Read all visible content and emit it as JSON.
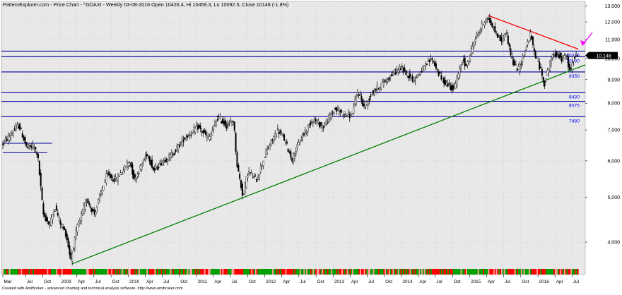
{
  "header": {
    "title": "PatternExplorer.com - Price Chart - ^GDAXI - Weekly 03-08-2016 Open 10426.4, Hi 10459.3, Lo 10092.5, Close 10148 (-1.8%)"
  },
  "footer": {
    "credit": "Created with AmiBroker - advanced charting and technical analysis software. http://www.amibroker.com"
  },
  "chart_data": {
    "type": "candlestick",
    "title": "PatternExplorer.com - Price Chart - ^GDAXI - Weekly 03-08-2016 Open 10426.4, Hi 10459.3, Lo 10092.5, Close 10148 (-1.8%)",
    "y_scale": "log",
    "ylim": [
      3500,
      13200
    ],
    "y_ticks": [
      {
        "value": 4000,
        "label": "4,000"
      },
      {
        "value": 5000,
        "label": "5,000"
      },
      {
        "value": 6000,
        "label": "6,000"
      },
      {
        "value": 7000,
        "label": "7,000"
      },
      {
        "value": 8000,
        "label": "8,000"
      },
      {
        "value": 9000,
        "label": "9,000"
      },
      {
        "value": 10000,
        "label": "10,000"
      },
      {
        "value": 11000,
        "label": "11,000"
      },
      {
        "value": 12000,
        "label": "12,000"
      },
      {
        "value": 13000,
        "label": "13,000"
      }
    ],
    "x_ticks": [
      {
        "label": "Mar",
        "date": "2008-03-01"
      },
      {
        "label": "Jul",
        "date": "2008-07-01"
      },
      {
        "label": "Oct",
        "date": "2008-10-01"
      },
      {
        "label": "2009",
        "date": "2009-01-01"
      },
      {
        "label": "Apr",
        "date": "2009-04-01"
      },
      {
        "label": "Jul",
        "date": "2009-07-01"
      },
      {
        "label": "Oct",
        "date": "2009-10-01"
      },
      {
        "label": "2010",
        "date": "2010-01-01"
      },
      {
        "label": "Apr",
        "date": "2010-04-01"
      },
      {
        "label": "Jul",
        "date": "2010-07-01"
      },
      {
        "label": "Oct",
        "date": "2010-10-01"
      },
      {
        "label": "2011",
        "date": "2011-01-01"
      },
      {
        "label": "Apr",
        "date": "2011-04-01"
      },
      {
        "label": "Jul",
        "date": "2011-07-01"
      },
      {
        "label": "Oct",
        "date": "2011-10-01"
      },
      {
        "label": "2012",
        "date": "2012-01-01"
      },
      {
        "label": "Apr",
        "date": "2012-04-01"
      },
      {
        "label": "Jul",
        "date": "2012-07-01"
      },
      {
        "label": "Oct",
        "date": "2012-10-01"
      },
      {
        "label": "2013",
        "date": "2013-01-01"
      },
      {
        "label": "Apr",
        "date": "2013-04-01"
      },
      {
        "label": "Jul",
        "date": "2013-07-01"
      },
      {
        "label": "Oct",
        "date": "2013-10-01"
      },
      {
        "label": "2014",
        "date": "2014-01-01"
      },
      {
        "label": "Apr",
        "date": "2014-04-01"
      },
      {
        "label": "Jul",
        "date": "2014-07-01"
      },
      {
        "label": "Oct",
        "date": "2014-10-01"
      },
      {
        "label": "2015",
        "date": "2015-01-01"
      },
      {
        "label": "Apr",
        "date": "2015-04-01"
      },
      {
        "label": "Jul",
        "date": "2015-07-01"
      },
      {
        "label": "Oct",
        "date": "2015-10-01"
      },
      {
        "label": "2016",
        "date": "2016-01-01"
      },
      {
        "label": "Apr",
        "date": "2016-04-01"
      },
      {
        "label": "Jul",
        "date": "2016-07-01"
      }
    ],
    "date_range": [
      "2008-03-01",
      "2016-08-03"
    ],
    "last_close": {
      "value": 10148,
      "label": "10,148"
    },
    "horizontal_levels": [
      {
        "value": 10375,
        "label": "10375"
      },
      {
        "value": 10090,
        "label": "10090"
      },
      {
        "value": 9350,
        "label": "9350"
      },
      {
        "value": 8430,
        "label": "8430"
      },
      {
        "value": 8075,
        "label": "8075"
      },
      {
        "value": 7480,
        "label": "7480"
      }
    ],
    "short_levels": [
      {
        "value": 6550,
        "date_start": "2008-03-01",
        "date_end": "2008-11-20"
      },
      {
        "value": 6250,
        "date_start": "2008-03-01",
        "date_end": "2008-10-25"
      }
    ],
    "trendlines": [
      {
        "name": "support",
        "color": "#008000",
        "points": [
          {
            "date": "2009-03-06",
            "value": 3588
          },
          {
            "date": "2016-08-03",
            "value": 9555
          }
        ]
      },
      {
        "name": "resistance",
        "color": "#ff0000",
        "points": [
          {
            "date": "2015-04-10",
            "value": 12390
          },
          {
            "date": "2016-08-03",
            "value": 10480
          }
        ]
      }
    ],
    "price_path": [
      {
        "date": "2008-03-01",
        "value": 6500
      },
      {
        "date": "2008-04-15",
        "value": 6800
      },
      {
        "date": "2008-06-01",
        "value": 7180
      },
      {
        "date": "2008-07-15",
        "value": 6400
      },
      {
        "date": "2008-08-20",
        "value": 6450
      },
      {
        "date": "2008-09-10",
        "value": 6200
      },
      {
        "date": "2008-10-10",
        "value": 4600
      },
      {
        "date": "2008-11-15",
        "value": 4350
      },
      {
        "date": "2008-12-10",
        "value": 4800
      },
      {
        "date": "2009-01-10",
        "value": 4400
      },
      {
        "date": "2009-02-10",
        "value": 4150
      },
      {
        "date": "2009-03-06",
        "value": 3666
      },
      {
        "date": "2009-04-10",
        "value": 4300
      },
      {
        "date": "2009-06-01",
        "value": 4950
      },
      {
        "date": "2009-07-10",
        "value": 4600
      },
      {
        "date": "2009-09-15",
        "value": 5600
      },
      {
        "date": "2009-11-01",
        "value": 5450
      },
      {
        "date": "2010-01-15",
        "value": 6000
      },
      {
        "date": "2010-02-10",
        "value": 5450
      },
      {
        "date": "2010-04-20",
        "value": 6250
      },
      {
        "date": "2010-05-25",
        "value": 5700
      },
      {
        "date": "2010-07-01",
        "value": 5950
      },
      {
        "date": "2010-09-01",
        "value": 6200
      },
      {
        "date": "2010-11-01",
        "value": 6700
      },
      {
        "date": "2011-01-15",
        "value": 7100
      },
      {
        "date": "2011-03-15",
        "value": 6700
      },
      {
        "date": "2011-05-02",
        "value": 7450
      },
      {
        "date": "2011-06-20",
        "value": 7150
      },
      {
        "date": "2011-07-25",
        "value": 7350
      },
      {
        "date": "2011-08-12",
        "value": 5900
      },
      {
        "date": "2011-09-12",
        "value": 5050
      },
      {
        "date": "2011-10-10",
        "value": 5700
      },
      {
        "date": "2011-11-25",
        "value": 5450
      },
      {
        "date": "2012-01-10",
        "value": 6200
      },
      {
        "date": "2012-03-16",
        "value": 7000
      },
      {
        "date": "2012-04-20",
        "value": 6700
      },
      {
        "date": "2012-06-01",
        "value": 6050
      },
      {
        "date": "2012-07-20",
        "value": 6700
      },
      {
        "date": "2012-09-20",
        "value": 7400
      },
      {
        "date": "2012-11-15",
        "value": 7100
      },
      {
        "date": "2013-01-15",
        "value": 7750
      },
      {
        "date": "2013-04-15",
        "value": 7500
      },
      {
        "date": "2013-05-20",
        "value": 8500
      },
      {
        "date": "2013-06-25",
        "value": 7800
      },
      {
        "date": "2013-08-01",
        "value": 8400
      },
      {
        "date": "2013-10-20",
        "value": 9000
      },
      {
        "date": "2013-12-31",
        "value": 9550
      },
      {
        "date": "2014-03-15",
        "value": 9000
      },
      {
        "date": "2014-06-20",
        "value": 10000
      },
      {
        "date": "2014-08-10",
        "value": 9000
      },
      {
        "date": "2014-10-15",
        "value": 8570
      },
      {
        "date": "2014-12-05",
        "value": 10000
      },
      {
        "date": "2014-12-20",
        "value": 9550
      },
      {
        "date": "2015-02-01",
        "value": 10900
      },
      {
        "date": "2015-03-15",
        "value": 11800
      },
      {
        "date": "2015-04-10",
        "value": 12300
      },
      {
        "date": "2015-05-15",
        "value": 11600
      },
      {
        "date": "2015-06-25",
        "value": 10900
      },
      {
        "date": "2015-07-20",
        "value": 11500
      },
      {
        "date": "2015-08-25",
        "value": 9800
      },
      {
        "date": "2015-09-25",
        "value": 9450
      },
      {
        "date": "2015-11-30",
        "value": 11300
      },
      {
        "date": "2015-12-15",
        "value": 10450
      },
      {
        "date": "2016-01-20",
        "value": 9500
      },
      {
        "date": "2016-02-12",
        "value": 8800
      },
      {
        "date": "2016-03-15",
        "value": 9950
      },
      {
        "date": "2016-04-20",
        "value": 10300
      },
      {
        "date": "2016-05-15",
        "value": 9900
      },
      {
        "date": "2016-06-08",
        "value": 10200
      },
      {
        "date": "2016-06-27",
        "value": 9300
      },
      {
        "date": "2016-07-20",
        "value": 10150
      },
      {
        "date": "2016-08-03",
        "value": 10148
      }
    ],
    "colors": {
      "plot_background": "#e8e8e8",
      "candles": "#000000",
      "level_lines": "#0000a0",
      "level_labels": "#0000ff",
      "support_line": "#008000",
      "resistance_line": "#ff0000",
      "arrow": "#ff00ff",
      "close_badge": "#000000",
      "strip_up": "#00a000",
      "strip_down": "#ff0000",
      "strip_neutral": "#ff9c9c"
    }
  }
}
